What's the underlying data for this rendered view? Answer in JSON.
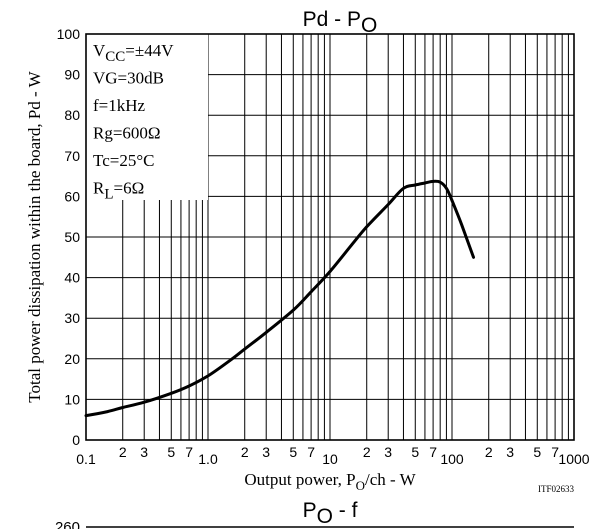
{
  "chart_data": [
    {
      "type": "line",
      "title_main": "Pd - P",
      "title_sub": "O",
      "xlabel_pre": "Output power, P",
      "xlabel_sub": "O",
      "xlabel_post": "/ch - W",
      "ylabel": "Total power dissipation within the board, Pd - W",
      "x_scale": "log",
      "xlim": [
        0.1,
        1000
      ],
      "ylim": [
        0,
        100
      ],
      "yticks": [
        0,
        10,
        20,
        30,
        40,
        50,
        60,
        70,
        80,
        90,
        100
      ],
      "x_major_ticks": [
        {
          "value": 0.1,
          "label": "0.1"
        },
        {
          "value": 1,
          "label": "1.0"
        },
        {
          "value": 10,
          "label": "10"
        },
        {
          "value": 100,
          "label": "100"
        },
        {
          "value": 1000,
          "label": "1000"
        }
      ],
      "x_minor_ticks": [
        {
          "value": 0.2,
          "label": "2"
        },
        {
          "value": 0.3,
          "label": "3"
        },
        {
          "value": 0.5,
          "label": "5"
        },
        {
          "value": 0.7,
          "label": "7"
        },
        {
          "value": 2,
          "label": "2"
        },
        {
          "value": 3,
          "label": "3"
        },
        {
          "value": 5,
          "label": "5"
        },
        {
          "value": 7,
          "label": "7"
        },
        {
          "value": 20,
          "label": "2"
        },
        {
          "value": 30,
          "label": "3"
        },
        {
          "value": 50,
          "label": "5"
        },
        {
          "value": 70,
          "label": "7"
        },
        {
          "value": 200,
          "label": "2"
        },
        {
          "value": 300,
          "label": "3"
        },
        {
          "value": 500,
          "label": "5"
        },
        {
          "value": 700,
          "label": "7"
        }
      ],
      "grid": true,
      "conditions": [
        {
          "main": "V",
          "sub": "CC",
          "rest": "=±44V"
        },
        {
          "main": "VG=30dB",
          "sub": "",
          "rest": ""
        },
        {
          "main": "f=1kHz",
          "sub": "",
          "rest": ""
        },
        {
          "main": "Rg=600Ω",
          "sub": "",
          "rest": ""
        },
        {
          "main": "Tc=25°C",
          "sub": "",
          "rest": ""
        },
        {
          "main": "R",
          "sub": "L",
          "rest": "=6Ω"
        }
      ],
      "code": "ITF02633",
      "series": [
        {
          "x": [
            0.1,
            0.15,
            0.2,
            0.3,
            0.5,
            0.7,
            1,
            1.5,
            2,
            3,
            5,
            7,
            10,
            15,
            20,
            30,
            40,
            50,
            60,
            70,
            80,
            90,
            100,
            120,
            150
          ],
          "y": [
            6,
            7,
            8,
            9.3,
            11.5,
            13.3,
            15.8,
            19.5,
            22.4,
            26.5,
            32,
            36.5,
            41.5,
            48,
            52.5,
            58,
            62,
            62.8,
            63.3,
            63.7,
            63.5,
            62,
            59,
            53,
            45
          ]
        }
      ]
    },
    {
      "type": "line",
      "title_main": "P",
      "title_sub": "O",
      "title_post": " - f",
      "y_top_label": "260"
    }
  ]
}
